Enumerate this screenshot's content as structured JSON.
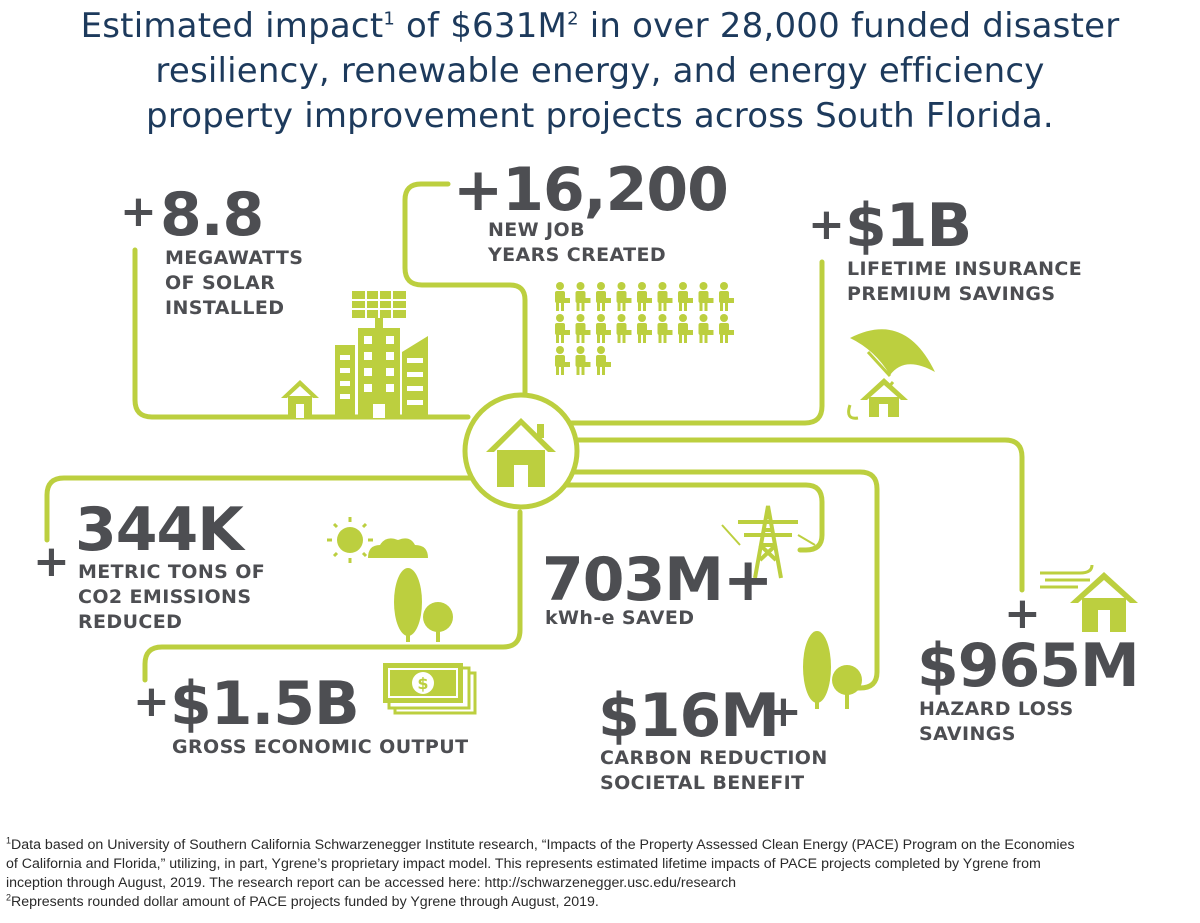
{
  "header": {
    "title_part1": "Estimated impact",
    "title_sup1": "1",
    "title_part2": " of $631M",
    "title_sup2": "2",
    "title_part3": " in over 28,000 funded disaster",
    "title_line2": "resiliency, renewable energy, and energy efficiency",
    "title_line3": "property improvement projects across South Florida."
  },
  "stats": {
    "solar": {
      "plus": "+",
      "value": "8.8",
      "label_l1": "MEGAWATTS",
      "label_l2": "OF SOLAR",
      "label_l3": "INSTALLED"
    },
    "jobs": {
      "plus": "+",
      "value": "16,200",
      "label_l1": "NEW JOB",
      "label_l2": "YEARS CREATED"
    },
    "insurance": {
      "plus": "+",
      "value": "$1B",
      "label_l1": "LIFETIME INSURANCE",
      "label_l2": "PREMIUM SAVINGS"
    },
    "co2": {
      "plus": "+",
      "value": "344K",
      "label_l1": "METRIC TONS OF",
      "label_l2": "CO2 EMISSIONS",
      "label_l3": "REDUCED"
    },
    "kwh": {
      "value": "703M+",
      "label_l1": "kWh-e SAVED"
    },
    "hazard": {
      "plus": "+",
      "value": "$965M",
      "label_l1": "HAZARD LOSS",
      "label_l2": "SAVINGS"
    },
    "economic": {
      "plus": "+",
      "value": "$1.5B",
      "label_l1": "GROSS ECONOMIC OUTPUT"
    },
    "carbon": {
      "plus": "+",
      "value": "$16M",
      "label_l1": "CARBON REDUCTION",
      "label_l2": "SOCIETAL BENEFIT"
    }
  },
  "footnotes": {
    "sup1": "1",
    "f1_line1": "Data based on University of Southern California Schwarzenegger Institute research, “Impacts of the Property Assessed Clean Energy (PACE) Program on the Economies",
    "f1_line2": "of California and Florida,” utilizing, in part, Ygrene’s proprietary impact model. This represents estimated lifetime impacts of PACE projects completed by Ygrene from",
    "f1_line3": "inception through August, 2019. The research report can be accessed here: http://schwarzenegger.usc.edu/research",
    "sup2": "2",
    "f2_line1": "Represents rounded dollar amount of PACE projects funded by Ygrene through August, 2019."
  },
  "colors": {
    "accent": "#bccf3f",
    "text_dark": "#4d4e52",
    "title": "#1d3a5c"
  },
  "icons": [
    "house-icon",
    "solar-building-icon",
    "worker-icon",
    "umbrella-house-icon",
    "sun-cloud-icon",
    "tree-icon",
    "power-tower-icon",
    "wind-house-icon",
    "money-icon"
  ]
}
